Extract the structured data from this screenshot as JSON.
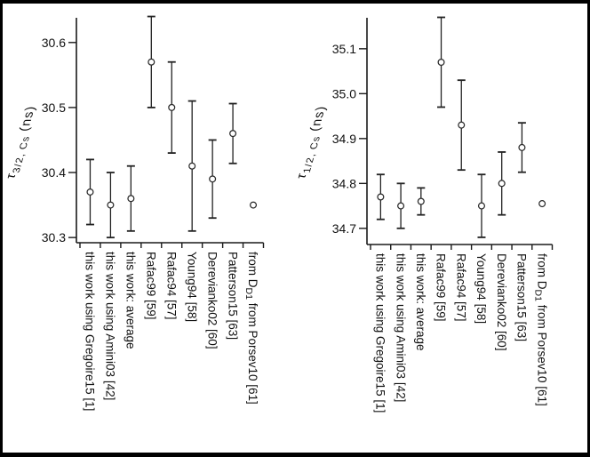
{
  "figure": {
    "background": "#ffffff",
    "frame_color": "#000000",
    "axis_color": "#1a1a1a",
    "error_bar_color": "#222222",
    "marker": {
      "shape": "open-circle",
      "fill": "#ffffff",
      "stroke": "#2b2b2b"
    }
  },
  "chart_data": [
    {
      "type": "scatter",
      "name": "tau-3-2-Cs-lifetime-plot",
      "error_bars": true,
      "grid": false,
      "legend": "none",
      "ylabel": {
        "prefix": "τ",
        "prefix_italic": true,
        "sub": "3/2, Cs",
        "suffix": " (ns)"
      },
      "ytick_labels": [
        "30.3",
        "30.4",
        "30.5",
        "30.6"
      ],
      "ytick_values": [
        30.3,
        30.4,
        30.5,
        30.6
      ],
      "ylim": [
        30.292,
        30.638
      ],
      "categories": [
        "this work using Gregoire15 [1]",
        "this work using Amini03 [42]",
        "this work: average",
        "Rafac99 [59]",
        "Rafac94 [57]",
        "Young94 [58]",
        "Derevianko02 [60]",
        "Patterson15 [63]",
        "from D_{D1} from Porsev10 [61]"
      ],
      "series": [
        {
          "name": "tau_3/2_Cs (ns)",
          "values": [
            30.37,
            30.35,
            30.36,
            30.57,
            30.5,
            30.41,
            30.39,
            30.46,
            30.35
          ],
          "errors": [
            0.05,
            0.05,
            0.05,
            0.07,
            0.07,
            0.1,
            0.06,
            0.046,
            null
          ]
        }
      ]
    },
    {
      "type": "scatter",
      "name": "tau-1-2-Cs-lifetime-plot",
      "error_bars": true,
      "grid": false,
      "legend": "none",
      "ylabel": {
        "prefix": "τ",
        "prefix_italic": true,
        "sub": "1/2, Cs",
        "suffix": " (ns)"
      },
      "ytick_labels": [
        "34.7",
        "34.8",
        "34.9",
        "35.0",
        "35.1"
      ],
      "ytick_values": [
        34.7,
        34.8,
        34.9,
        35.0,
        35.1
      ],
      "ylim": [
        34.664,
        35.169
      ],
      "categories": [
        "this work using Gregoire15 [1]",
        "this work using Amini03 [42]",
        "this work: average",
        "Rafac99 [59]",
        "Rafac94 [57]",
        "Young94 [58]",
        "Derevianko02 [60]",
        "Patterson15 [63]",
        "from D_{D1} from Porsev10 [61]"
      ],
      "series": [
        {
          "name": "tau_1/2_Cs (ns)",
          "values": [
            34.77,
            34.75,
            34.76,
            35.07,
            34.93,
            34.75,
            34.8,
            34.88,
            34.755
          ],
          "errors": [
            0.05,
            0.05,
            0.03,
            0.1,
            0.1,
            0.07,
            0.07,
            0.055,
            null
          ]
        }
      ]
    }
  ]
}
